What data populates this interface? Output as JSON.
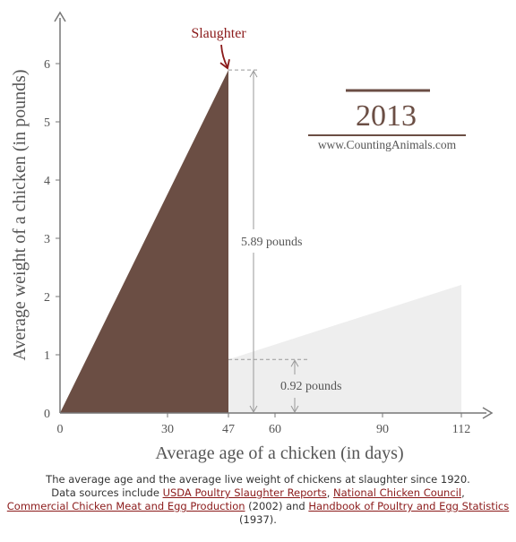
{
  "colors": {
    "primary_fill": "#6b4e44",
    "secondary_fill": "#eeeeee",
    "accent": "#8b1a1a",
    "axis": "#777777",
    "text": "#555555",
    "link": "#8b1a1a"
  },
  "chart_data": {
    "type": "area",
    "xlabel": "Average age of a chicken (in days)",
    "ylabel": "Average weight of a chicken (in pounds)",
    "xlim": [
      0,
      126
    ],
    "ylim": [
      0,
      6.8
    ],
    "x_ticks": [
      0,
      30,
      47,
      60,
      90,
      112
    ],
    "y_ticks": [
      0,
      1,
      2,
      3,
      4,
      5,
      6
    ],
    "grid": false,
    "series": [
      {
        "points": [
          [
            0,
            0
          ],
          [
            47,
            5.89
          ]
        ],
        "color": "#6b4e44"
      },
      {
        "points": [
          [
            47,
            0.92
          ],
          [
            112,
            2.2
          ]
        ],
        "color": "#eeeeee"
      }
    ],
    "annotations": {
      "slaughter_label": "Slaughter",
      "slaughter_point": [
        47,
        5.89
      ],
      "weight_2013_label": "5.89 pounds",
      "weight_2013": 5.89,
      "weight_1920_label": "0.92 pounds",
      "weight_1920": 0.92
    },
    "year_title": "2013",
    "website": "www.CountingAnimals.com"
  },
  "caption": {
    "line1": "The average age and the average live weight of chickens at slaughter since 1920.",
    "line2_pre": "Data sources include ",
    "link1": "USDA Poultry Slaughter Reports",
    "sep1": ", ",
    "link2": "National Chicken Council",
    "sep2": ",",
    "link3": "Commercial Chicken Meat and Egg Production",
    "mid": " (2002) and ",
    "link4": "Handbook of Poultry and Egg Statistics",
    "end": " (1937)."
  }
}
